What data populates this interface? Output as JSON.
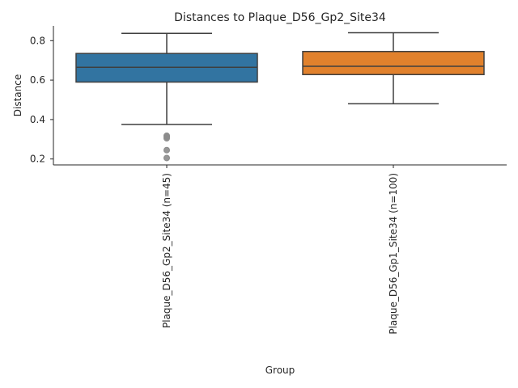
{
  "chart_data": {
    "type": "box",
    "title": "Distances to Plaque_D56_Gp2_Site34",
    "xlabel": "Group",
    "ylabel": "Distance",
    "ylim": [
      0.17,
      0.875
    ],
    "yticks": [
      0.2,
      0.4,
      0.6,
      0.8
    ],
    "grid": false,
    "categories": [
      "Plaque_D56_Gp2_Site34 (n=45)",
      "Plaque_D56_Gp1_Site34 (n=100)"
    ],
    "boxes": [
      {
        "whisker_low": 0.375,
        "q1": 0.59,
        "median": 0.665,
        "q3": 0.735,
        "whisker_high": 0.837,
        "outliers": [
          0.318,
          0.312,
          0.305,
          0.245,
          0.205
        ],
        "color": "#3274a1"
      },
      {
        "whisker_low": 0.48,
        "q1": 0.628,
        "median": 0.67,
        "q3": 0.745,
        "whisker_high": 0.84,
        "outliers": [],
        "color": "#e1812c"
      }
    ],
    "line_color": "#3f3f3f",
    "outlier_color": "#8c8c8c"
  }
}
